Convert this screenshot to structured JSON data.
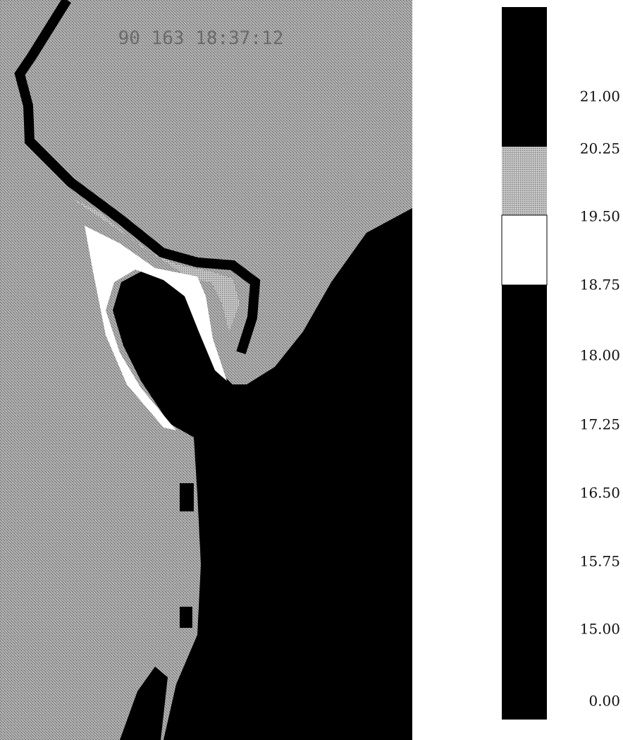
{
  "map": {
    "timestamp": "90 163 18:37:12"
  },
  "colorbar": {
    "labels": [
      "21.00",
      "20.25",
      "19.50",
      "18.75",
      "18.00",
      "17.25",
      "16.50",
      "15.75",
      "15.00",
      "0.00"
    ]
  }
}
